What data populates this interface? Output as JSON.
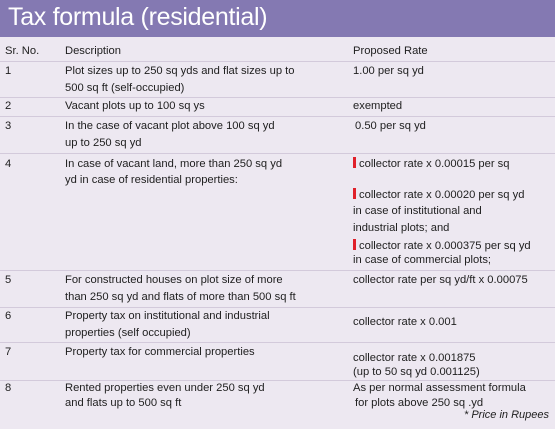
{
  "title": "Tax formula (residential)",
  "columns": {
    "sr": "Sr. No.",
    "description": "Description",
    "rate": "Proposed Rate"
  },
  "rows": [
    {
      "sr": "1",
      "desc": [
        "Plot sizes up to 250 sq yds and flat sizes up to",
        "500 sq ft (self-occupied)"
      ],
      "rate": [
        "1.00 per sq yd"
      ]
    },
    {
      "sr": "2",
      "desc": [
        "Vacant plots up to 100 sq ys"
      ],
      "rate": [
        "exempted"
      ]
    },
    {
      "sr": "3",
      "desc": [
        "In the case of vacant plot above 100 sq yd",
        "up to 250 sq yd"
      ],
      "rate": [
        "0.50 per sq yd"
      ]
    },
    {
      "sr": "4",
      "desc": [
        "In case of vacant land, more than 250 sq yd",
        "yd in case of residential properties:"
      ],
      "rate_a": [
        "collector rate x 0.00015 per sq"
      ],
      "rate_b": [
        "collector rate x 0.00020 per sq yd",
        "in case of institutional and",
        "industrial plots; and"
      ],
      "rate_c": [
        "collector rate x 0.000375 per sq yd",
        "in case of commercial plots;"
      ]
    },
    {
      "sr": "5",
      "desc": [
        "For constructed houses on plot size of more",
        "than 250 sq yd and flats of more than 500 sq ft"
      ],
      "rate": [
        "collector rate per sq yd/ft x 0.00075"
      ]
    },
    {
      "sr": "6",
      "desc": [
        "Property tax on institutional and industrial",
        "properties (self occupied)"
      ],
      "rate": [
        "collector rate x 0.001"
      ]
    },
    {
      "sr": "7",
      "desc": [
        "Property tax for commercial properties"
      ],
      "rate": [
        "collector rate x 0.001875",
        "(up to 50 sq yd 0.001125)"
      ]
    },
    {
      "sr": "8",
      "desc": [
        "Rented properties even under 250 sq yd",
        "and flats up to 500 sq ft"
      ],
      "rate": [
        "As per normal assessment formula",
        "for plots above 250 sq .yd"
      ]
    }
  ],
  "footnote": "* Price in Rupees",
  "colors": {
    "header_bg": "#8479b2",
    "page_bg": "#ede8f1",
    "marker": "#e0202a"
  }
}
